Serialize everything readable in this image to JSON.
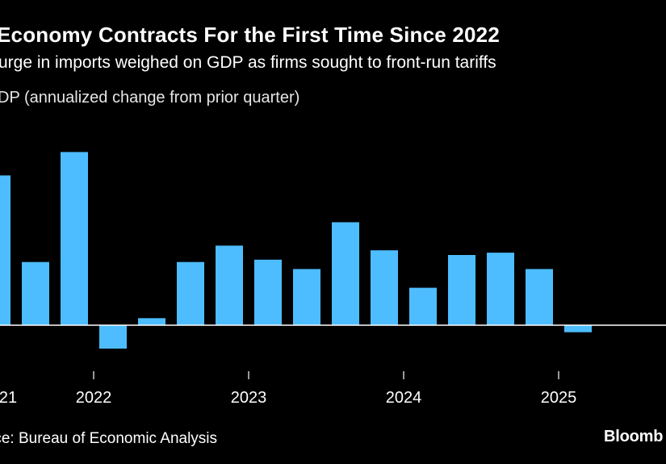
{
  "header": {
    "title": "Economy Contracts For the First Time Since 2022",
    "subtitle": "urge in imports weighed on GDP as firms sought to front-run tariffs",
    "ylabel": "DP (annualized change from prior quarter)"
  },
  "footer": {
    "source": "rce: Bureau of Economic Analysis",
    "brand": "Bloomb"
  },
  "colors": {
    "bar": "#4dbdff",
    "background": "#000000",
    "axis": "#ffffff",
    "text": "#ffffff"
  },
  "chart_data": {
    "type": "bar",
    "title": "Economy Contracts For the First Time Since 2022",
    "subtitle": "urge in imports weighed on GDP as firms sought to front-run tariffs",
    "ylabel": "DP (annualized change from prior quarter)",
    "xlabel": "",
    "categories": [
      "2021 Q2",
      "2021 Q3",
      "2021 Q4",
      "2022 Q1",
      "2022 Q2",
      "2022 Q3",
      "2022 Q4",
      "2023 Q1",
      "2023 Q2",
      "2023 Q3",
      "2023 Q4",
      "2024 Q1",
      "2024 Q2",
      "2024 Q3",
      "2024 Q4",
      "2025 Q1"
    ],
    "values": [
      6.4,
      2.7,
      7.4,
      -1.0,
      0.3,
      2.7,
      3.4,
      2.8,
      2.4,
      4.4,
      3.2,
      1.6,
      3.0,
      3.1,
      2.4,
      -0.3
    ],
    "x_tick_labels": [
      "21",
      "2022",
      "2023",
      "2024",
      "2025"
    ],
    "ylim": [
      -1.5,
      8
    ],
    "grid": false,
    "legend": "none"
  }
}
